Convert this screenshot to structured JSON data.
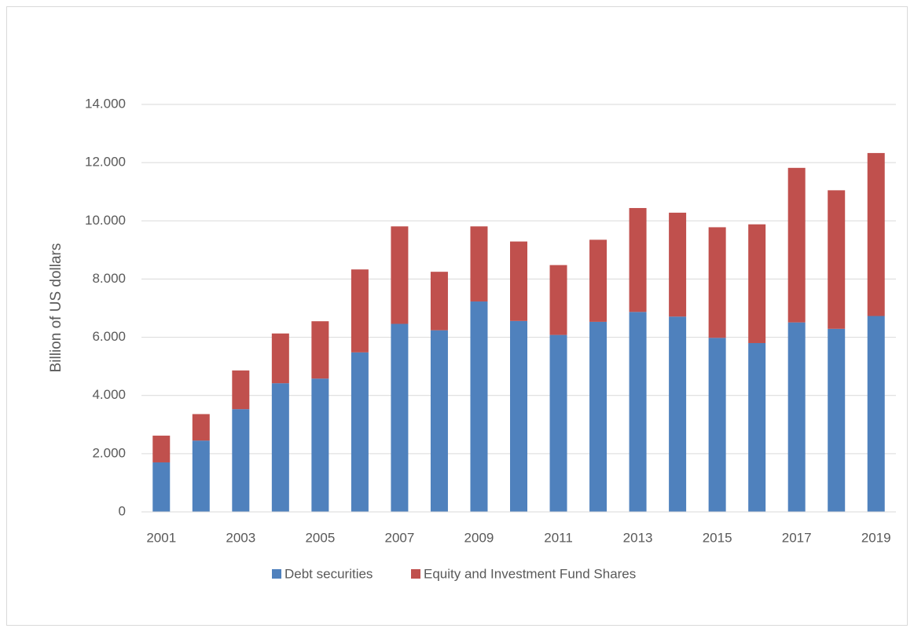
{
  "chart_data": {
    "type": "bar",
    "stacked": true,
    "ylabel": "Billion of US dollars",
    "categories": [
      "2001",
      null,
      "2003",
      null,
      "2005",
      null,
      "2007",
      null,
      "2009",
      null,
      "2011",
      null,
      "2013",
      null,
      "2015",
      null,
      "2017",
      null,
      "2019"
    ],
    "series": [
      {
        "name": "Debt securities",
        "color": "#4f81bd",
        "values": [
          1700,
          2450,
          3530,
          4420,
          4580,
          5480,
          6460,
          6240,
          7230,
          6560,
          6080,
          6530,
          6870,
          6710,
          5980,
          5800,
          6510,
          6290,
          6730
        ]
      },
      {
        "name": "Equity and Investment Fund Shares",
        "color": "#c0504d",
        "values": [
          920,
          910,
          1330,
          1710,
          1970,
          2850,
          3350,
          2010,
          2580,
          2730,
          2400,
          2820,
          3570,
          3570,
          3800,
          4080,
          5310,
          4760,
          5600
        ]
      }
    ],
    "ylim": [
      0,
      14000
    ],
    "yticks": [
      0,
      {
        "value": 2000,
        "label": "2.000"
      },
      {
        "value": 4000,
        "label": "4.000"
      },
      {
        "value": 6000,
        "label": "6.000"
      },
      {
        "value": 8000,
        "label": "8.000"
      },
      {
        "value": 10000,
        "label": "10.000"
      },
      {
        "value": 12000,
        "label": "12.000"
      },
      {
        "value": 14000,
        "label": "14.000"
      }
    ],
    "grid": true,
    "legend": "bottom"
  }
}
